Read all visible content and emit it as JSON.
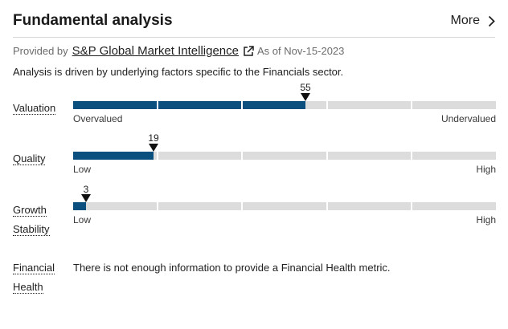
{
  "header": {
    "title": "Fundamental analysis",
    "more_label": "More"
  },
  "provider": {
    "prefix": "Provided by",
    "name": "S&P Global Market Intelligence",
    "as_of": "As of Nov-15-2023"
  },
  "description": "Analysis is driven by underlying factors specific to the Financials sector.",
  "metrics": [
    {
      "label": "Valuation",
      "score": 55,
      "score_text": "55",
      "low_label": "Overvalued",
      "high_label": "Undervalued"
    },
    {
      "label": "Quality",
      "score": 19,
      "score_text": "19",
      "low_label": "Low",
      "high_label": "High"
    },
    {
      "label_line1": "Growth",
      "label_line2": "Stability",
      "score": 3,
      "score_text": "3",
      "low_label": "Low",
      "high_label": "High"
    }
  ],
  "financial_health": {
    "label_line1": "Financial",
    "label_line2": "Health",
    "message": "There is not enough information to provide a Financial Health metric."
  },
  "colors": {
    "bar_fill": "#0a4f7d",
    "bar_track": "#dcdcdc"
  }
}
